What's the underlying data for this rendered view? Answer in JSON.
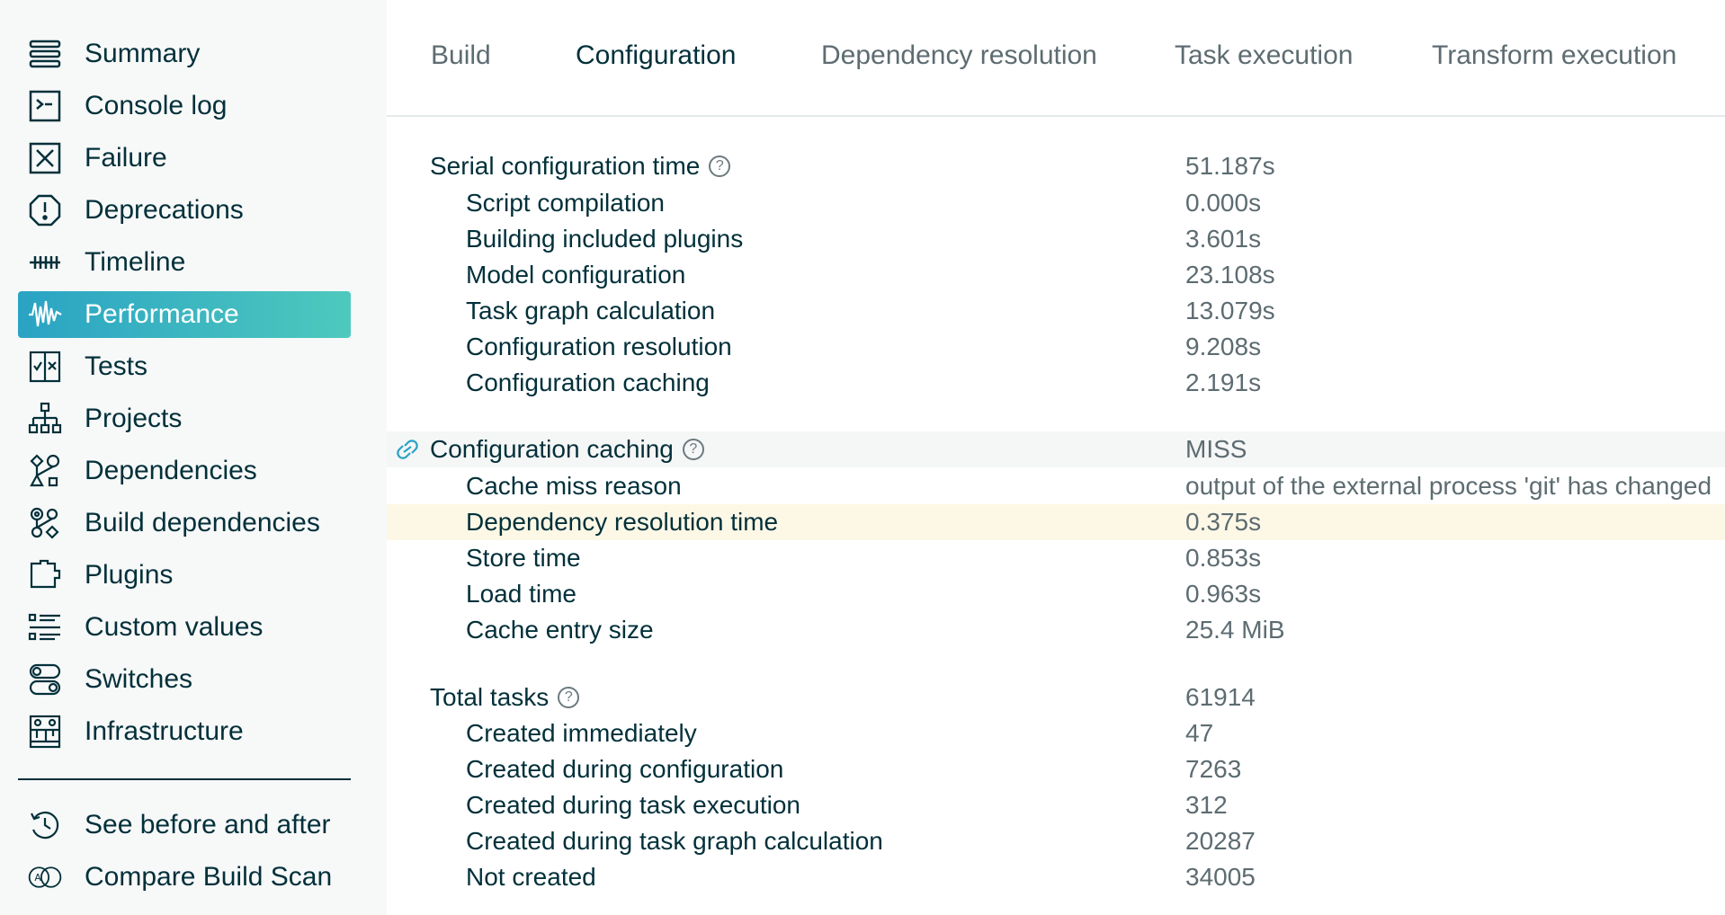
{
  "sidebar": {
    "items": [
      {
        "label": "Summary",
        "icon": "summary-icon"
      },
      {
        "label": "Console log",
        "icon": "console-icon"
      },
      {
        "label": "Failure",
        "icon": "failure-icon"
      },
      {
        "label": "Deprecations",
        "icon": "deprecations-icon"
      },
      {
        "label": "Timeline",
        "icon": "timeline-icon"
      },
      {
        "label": "Performance",
        "icon": "performance-icon",
        "active": true
      },
      {
        "label": "Tests",
        "icon": "tests-icon"
      },
      {
        "label": "Projects",
        "icon": "projects-icon"
      },
      {
        "label": "Dependencies",
        "icon": "dependencies-icon"
      },
      {
        "label": "Build dependencies",
        "icon": "build-dependencies-icon"
      },
      {
        "label": "Plugins",
        "icon": "plugins-icon"
      },
      {
        "label": "Custom values",
        "icon": "custom-values-icon"
      },
      {
        "label": "Switches",
        "icon": "switches-icon"
      },
      {
        "label": "Infrastructure",
        "icon": "infrastructure-icon"
      }
    ],
    "secondary": [
      {
        "label": "See before and after",
        "icon": "history-icon"
      },
      {
        "label": "Compare Build Scan",
        "icon": "compare-icon"
      }
    ]
  },
  "tabs": [
    {
      "label": "Build"
    },
    {
      "label": "Configuration",
      "active": true
    },
    {
      "label": "Dependency resolution"
    },
    {
      "label": "Task execution"
    },
    {
      "label": "Transform execution"
    }
  ],
  "sections": {
    "serial": {
      "label": "Serial configuration time",
      "value": "51.187s",
      "rows": [
        {
          "label": "Script compilation",
          "value": "0.000s"
        },
        {
          "label": "Building included plugins",
          "value": "3.601s"
        },
        {
          "label": "Model configuration",
          "value": "23.108s"
        },
        {
          "label": "Task graph calculation",
          "value": "13.079s"
        },
        {
          "label": "Configuration resolution",
          "value": "9.208s"
        },
        {
          "label": "Configuration caching",
          "value": "2.191s"
        }
      ]
    },
    "caching": {
      "label": "Configuration caching",
      "value": "MISS",
      "rows": [
        {
          "label": "Cache miss reason",
          "value": "output of the external process 'git' has changed"
        },
        {
          "label": "Dependency resolution time",
          "value": "0.375s"
        },
        {
          "label": "Store time",
          "value": "0.853s"
        },
        {
          "label": "Load time",
          "value": "0.963s"
        },
        {
          "label": "Cache entry size",
          "value": "25.4 MiB"
        }
      ]
    },
    "tasks": {
      "label": "Total tasks",
      "value": "61914",
      "rows": [
        {
          "label": "Created immediately",
          "value": "47"
        },
        {
          "label": "Created during configuration",
          "value": "7263"
        },
        {
          "label": "Created during task execution",
          "value": "312"
        },
        {
          "label": "Created during task graph calculation",
          "value": "20287"
        },
        {
          "label": "Not created",
          "value": "34005"
        }
      ]
    }
  },
  "help_glyph": "?",
  "colors": {
    "accent_start": "#2aa3c4",
    "accent_end": "#4ec9bd",
    "highlight": "#fdf8e6",
    "text": "#02303a",
    "muted": "#5d6c71"
  }
}
